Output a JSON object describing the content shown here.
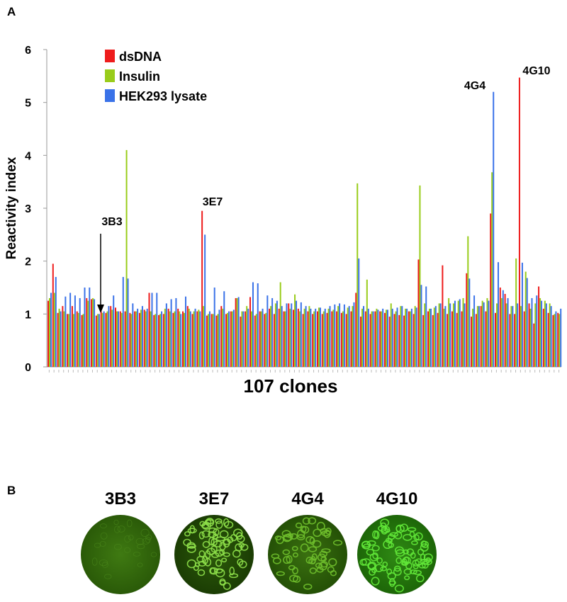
{
  "chart_data": {
    "type": "bar",
    "panel_label": "A",
    "y_label": "Reactivity index",
    "x_label": "107 clones",
    "ylim": [
      0,
      6
    ],
    "yticks": [
      0,
      1,
      2,
      3,
      4,
      5,
      6
    ],
    "legend": "top-left",
    "annotations": [
      "3B3",
      "3E7",
      "4G4",
      "4G10"
    ],
    "series": [
      {
        "name": "dsDNA",
        "color": "#ee1c1c",
        "values": [
          1.25,
          1.95,
          1.02,
          1.15,
          1.0,
          1.15,
          1.05,
          0.98,
          1.3,
          1.28,
          0.97,
          1.05,
          1.02,
          1.15,
          1.12,
          1.05,
          1.05,
          1.02,
          1.05,
          1.02,
          1.08,
          1.4,
          0.98,
          0.98,
          1.0,
          1.1,
          1.02,
          1.1,
          1.05,
          1.15,
          1.0,
          1.05,
          2.95,
          0.97,
          1.0,
          0.97,
          1.15,
          1.0,
          1.05,
          1.3,
          0.95,
          1.05,
          1.32,
          0.97,
          1.05,
          1.0,
          1.1,
          1.0,
          1.1,
          1.05,
          1.2,
          1.08,
          1.1,
          1.0,
          1.05,
          1.0,
          1.05,
          1.0,
          1.02,
          1.05,
          1.05,
          1.02,
          1.0,
          1.05,
          1.4,
          0.95,
          1.05,
          1.0,
          1.05,
          1.05,
          1.02,
          0.95,
          1.0,
          0.98,
          0.97,
          1.05,
          1.0,
          2.03,
          0.98,
          1.05,
          0.98,
          1.02,
          1.92,
          1.0,
          1.05,
          1.02,
          1.05,
          1.77,
          0.95,
          1.0,
          1.15,
          1.05,
          2.9,
          1.02,
          1.5,
          1.38,
          1.0,
          1.0,
          5.47,
          1.05,
          1.2,
          0.82,
          1.52,
          1.1,
          1.02,
          0.98,
          1.02
        ]
      },
      {
        "name": "Insulin",
        "color": "#99cc1a",
        "values": [
          1.3,
          1.4,
          1.1,
          1.05,
          1.0,
          1.0,
          1.02,
          1.0,
          1.25,
          1.3,
          1.0,
          1.02,
          1.05,
          1.08,
          1.05,
          1.02,
          4.1,
          1.0,
          1.05,
          1.08,
          1.05,
          1.05,
          1.0,
          1.0,
          1.1,
          1.05,
          1.05,
          1.05,
          1.02,
          1.1,
          1.05,
          1.08,
          1.15,
          1.0,
          1.0,
          1.0,
          1.1,
          1.02,
          1.05,
          1.3,
          1.05,
          1.15,
          1.05,
          1.0,
          1.05,
          1.02,
          1.15,
          1.2,
          1.6,
          1.05,
          1.1,
          1.37,
          1.05,
          1.1,
          1.15,
          1.05,
          1.12,
          1.05,
          1.1,
          1.08,
          1.15,
          1.05,
          1.12,
          1.15,
          3.47,
          1.1,
          1.65,
          1.05,
          1.1,
          1.05,
          1.08,
          1.2,
          1.05,
          1.15,
          1.1,
          1.05,
          1.15,
          3.43,
          1.2,
          1.1,
          1.12,
          1.2,
          1.1,
          1.3,
          1.2,
          1.25,
          1.3,
          2.47,
          1.1,
          1.15,
          1.25,
          1.3,
          3.68,
          1.2,
          1.3,
          1.2,
          1.15,
          2.05,
          1.15,
          1.8,
          1.1,
          1.2,
          1.3,
          1.25,
          1.2,
          1.0,
          1.0
        ]
      },
      {
        "name": "HEK293 lysate",
        "color": "#3a72e8",
        "values": [
          1.4,
          1.7,
          1.05,
          1.33,
          1.4,
          1.35,
          1.3,
          1.5,
          1.5,
          1.28,
          1.0,
          1.05,
          1.15,
          1.35,
          1.05,
          1.7,
          1.67,
          1.2,
          1.1,
          1.15,
          1.1,
          1.4,
          1.4,
          1.05,
          1.2,
          1.28,
          1.3,
          1.0,
          1.33,
          1.05,
          1.1,
          1.05,
          2.5,
          1.05,
          1.5,
          1.08,
          1.43,
          1.05,
          1.08,
          1.32,
          1.05,
          1.1,
          1.6,
          1.58,
          1.1,
          1.35,
          1.3,
          1.25,
          1.15,
          1.2,
          1.2,
          1.25,
          1.22,
          1.15,
          1.1,
          1.1,
          1.12,
          1.1,
          1.15,
          1.18,
          1.2,
          1.18,
          1.15,
          1.22,
          2.05,
          1.15,
          1.1,
          1.05,
          1.08,
          1.1,
          1.08,
          1.1,
          1.12,
          1.15,
          1.1,
          1.1,
          1.12,
          1.55,
          1.52,
          1.1,
          1.15,
          1.2,
          1.15,
          1.2,
          1.25,
          1.28,
          1.2,
          1.67,
          1.35,
          1.15,
          1.22,
          1.25,
          5.2,
          1.98,
          1.45,
          1.3,
          1.15,
          1.2,
          1.97,
          1.68,
          1.3,
          1.35,
          1.25,
          1.2,
          1.15,
          1.05,
          1.1
        ]
      }
    ]
  },
  "panel_b": {
    "panel_label": "B",
    "images": [
      "3B3",
      "3E7",
      "4G4",
      "4G10"
    ]
  }
}
